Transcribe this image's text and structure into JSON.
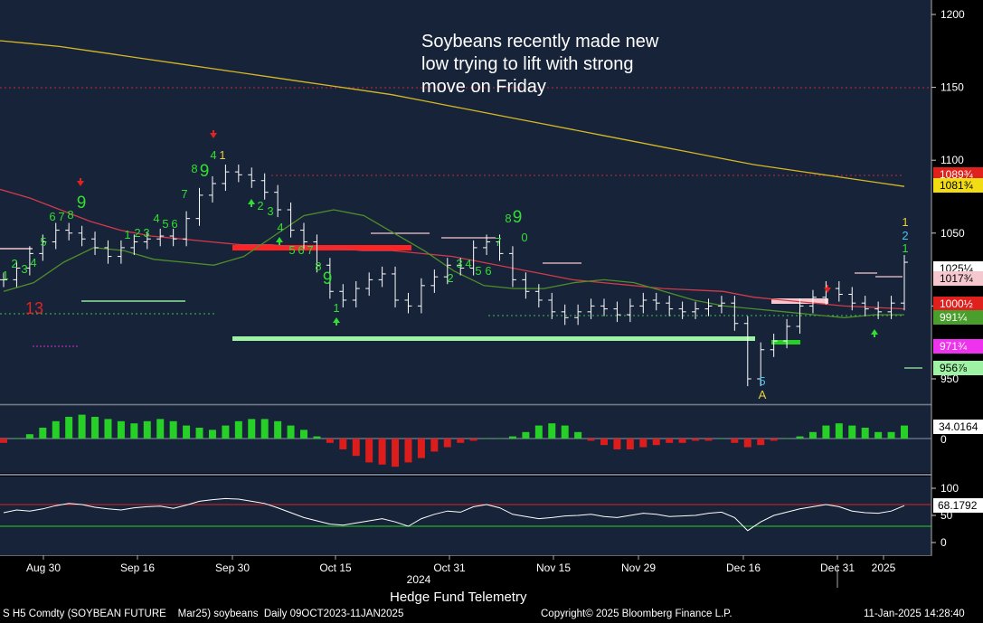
{
  "annotation": [
    "Soybeans recently made new",
    "low trying to lift with strong",
    "move on Friday"
  ],
  "footer": {
    "source_title": "Hedge Fund Telemetry",
    "ticker_info": "S H5 Comdty (SOYBEAN FUTURE    Mar25) soybeans  Daily 09OCT2023-11JAN2025",
    "copyright": "Copyright© 2025 Bloomberg Finance L.P.",
    "timestamp": "11-Jan-2025 14:28:40"
  },
  "colors": {
    "background": "#162338",
    "price_bar": "#ffffff",
    "ma_long": "#d6b826",
    "ma_mid": "#d23a4a",
    "ma_short": "#4f8f2a",
    "hist_pos": "#26d026",
    "hist_neg": "#dd1c1c",
    "rsi_line": "#ffffff",
    "seq_count": "#33dd33"
  },
  "chart_data": [
    {
      "type": "line",
      "panel": "price",
      "y_ticks": [
        "1200",
        "1150",
        "1100",
        "1050",
        "1000",
        "950"
      ],
      "ylim": [
        930,
        1210
      ],
      "x_ticks": [
        "Aug 30",
        "Sep 16",
        "Sep 30",
        "Oct 15",
        "Oct 31",
        "Nov 15",
        "Nov 29",
        "Dec 16",
        "Dec 31",
        "2025"
      ],
      "x_year_label": "2024",
      "series": [
        {
          "values": [
            1018,
            1026,
            1036,
            1044,
            1052,
            1050,
            1046,
            1040,
            1034,
            1040,
            1044,
            1046,
            1048,
            1046,
            1060,
            1076,
            1084,
            1092,
            1090,
            1086,
            1078,
            1066,
            1052,
            1044,
            1028,
            1010,
            1004,
            1012,
            1018,
            1022,
            1004,
            1000,
            1014,
            1020,
            1028,
            1026,
            1040,
            1044,
            1036,
            1018,
            1010,
            1004,
            996,
            992,
            996,
            1000,
            998,
            994,
            1000,
            1004,
            1002,
            998,
            996,
            998,
            1000,
            1002,
            988,
            950,
            970,
            976,
            986,
            1000,
            1006,
            1012,
            1008,
            1002,
            998,
            996,
            1002,
            1030
          ]
        },
        {
          "values": [
            1182,
            1180,
            1178,
            1175,
            1172,
            1169,
            1166,
            1163,
            1160,
            1157,
            1154,
            1151,
            1148,
            1145,
            1141,
            1137,
            1133,
            1129,
            1125,
            1121,
            1117,
            1113,
            1109,
            1105,
            1101,
            1097,
            1094,
            1091,
            1088,
            1085,
            1082
          ]
        },
        {
          "values": [
            1080,
            1074,
            1066,
            1058,
            1052,
            1048,
            1046,
            1044,
            1042,
            1042,
            1040,
            1040,
            1038,
            1038,
            1036,
            1034,
            1030,
            1026,
            1022,
            1018,
            1016,
            1014,
            1012,
            1011,
            1010,
            1006,
            1004,
            1002,
            1000,
            999,
            998
          ]
        },
        {
          "values": [
            1010,
            1016,
            1030,
            1040,
            1038,
            1032,
            1030,
            1028,
            1034,
            1048,
            1062,
            1066,
            1062,
            1050,
            1038,
            1024,
            1014,
            1012,
            1012,
            1016,
            1018,
            1016,
            1010,
            1004,
            1000,
            998,
            996,
            994,
            992,
            994,
            994
          ]
        }
      ],
      "value_labels": [
        {
          "text": "1089¾",
          "color": "#e0201c"
        },
        {
          "text": "1081¾",
          "color": "#f2dc14"
        },
        {
          "text": "1025¼",
          "color": "#ffffff"
        },
        {
          "text": "1017¾",
          "color": "#f5c8cf"
        },
        {
          "text": "1000½",
          "color": "#e0201c"
        },
        {
          "text": "991¼",
          "color": "#4a9e2c"
        },
        {
          "text": "971¾",
          "color": "#ee32ee"
        },
        {
          "text": "956⅞",
          "color": "#9ef2a4"
        }
      ],
      "seq_labels": [
        "1",
        "2",
        "3",
        "4",
        "5",
        "6",
        "7",
        "8",
        "9",
        "13",
        "1",
        "2",
        "3",
        "4",
        "5",
        "6",
        "7",
        "8",
        "9",
        "4",
        "1",
        "2",
        "3",
        "4",
        "5",
        "6",
        "7",
        "8",
        "9",
        "1",
        "2",
        "3",
        "4",
        "5",
        "6",
        "7",
        "8",
        "9",
        "0",
        "5",
        "A",
        "1",
        "2",
        "1"
      ]
    },
    {
      "type": "bar",
      "panel": "histogram",
      "value_label": "34.0164",
      "y_ticks": [
        "0"
      ],
      "values": [
        -2,
        0,
        2,
        5,
        8,
        10,
        11,
        10,
        9,
        8,
        7,
        8,
        9,
        8,
        6,
        5,
        4,
        6,
        8,
        9,
        9,
        8,
        6,
        4,
        1,
        -2,
        -5,
        -8,
        -11,
        -12,
        -13,
        -11,
        -9,
        -6,
        -4,
        -2,
        -1,
        0,
        0,
        1,
        3,
        6,
        7,
        6,
        3,
        -1,
        -3,
        -5,
        -5,
        -4,
        -3,
        -2,
        -2,
        -1,
        -1,
        0,
        -2,
        -4,
        -3,
        -1,
        0,
        1,
        3,
        6,
        7,
        6,
        5,
        3,
        3,
        6
      ]
    },
    {
      "type": "line",
      "panel": "rsi",
      "value_label": "68.1792",
      "y_ticks": [
        "100",
        "50",
        "0"
      ],
      "ylim": [
        0,
        100
      ],
      "values": [
        55,
        60,
        58,
        62,
        68,
        72,
        70,
        65,
        62,
        60,
        64,
        66,
        67,
        63,
        69,
        76,
        79,
        81,
        80,
        76,
        72,
        64,
        55,
        46,
        40,
        34,
        32,
        36,
        40,
        44,
        38,
        30,
        44,
        52,
        58,
        56,
        66,
        70,
        64,
        52,
        48,
        44,
        46,
        49,
        50,
        52,
        48,
        46,
        50,
        54,
        52,
        48,
        49,
        50,
        54,
        56,
        46,
        22,
        38,
        50,
        56,
        62,
        66,
        70,
        66,
        58,
        55,
        54,
        58,
        68
      ]
    }
  ]
}
